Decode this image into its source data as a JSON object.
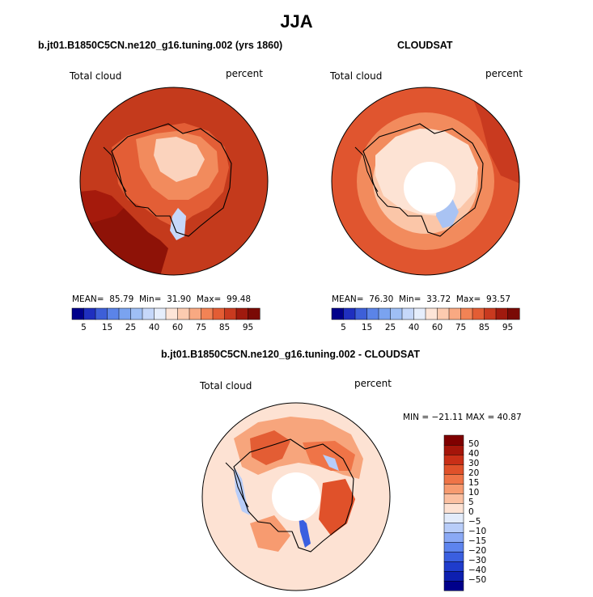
{
  "title": "JJA",
  "colors": {
    "ocean_high": "#c1361b",
    "land_mid": "#f08a5c",
    "land_light": "#fbd5c0",
    "coast": "#000000"
  },
  "panels": [
    {
      "name": "model",
      "title": "b.jt01.B1850C5CN.ne120_g16.tuning.002 (yrs 1860)",
      "left_label": "Total cloud",
      "right_label": "percent",
      "stats": {
        "mean_label": "MEAN=",
        "mean": "85.79",
        "min_label": "Min=",
        "min": "31.90",
        "max_label": "Max=",
        "max": "99.48"
      }
    },
    {
      "name": "cloudsat",
      "title": "CLOUDSAT",
      "left_label": "Total cloud",
      "right_label": "percent",
      "stats": {
        "mean_label": "MEAN=",
        "mean": "76.30",
        "min_label": "Min=",
        "min": "33.72",
        "max_label": "Max=",
        "max": "93.57"
      }
    },
    {
      "name": "difference",
      "title": "b.jt01.B1850C5CN.ne120_g16.tuning.002 - CLOUDSAT",
      "left_label": "Total cloud",
      "right_label": "percent",
      "minmax": "MIN = −21.11 MAX =  40.87"
    }
  ],
  "chart_data": [
    {
      "type": "heatmap",
      "title": "b.jt01.B1850C5CN.ne120_g16.tuning.002 (yrs 1860)",
      "variable": "Total cloud",
      "units": "percent",
      "projection": "south polar stereographic",
      "mean": 85.79,
      "min": 31.9,
      "max": 99.48,
      "colorbar": {
        "levels": [
          5,
          10,
          15,
          20,
          25,
          30,
          40,
          50,
          60,
          70,
          75,
          80,
          85,
          90,
          95
        ],
        "tick_labels": [
          "5",
          "15",
          "25",
          "40",
          "60",
          "75",
          "85",
          "95"
        ],
        "colors": [
          "#00008b",
          "#1f2fbf",
          "#3d5fd8",
          "#5b84e8",
          "#7aa3f0",
          "#9fbff5",
          "#c6d8fa",
          "#e6eefc",
          "#fde5d8",
          "#fccbb0",
          "#f9a982",
          "#f28355",
          "#e35d34",
          "#c93a1f",
          "#a01a0e",
          "#7a0a05"
        ]
      }
    },
    {
      "type": "heatmap",
      "title": "CLOUDSAT",
      "variable": "Total cloud",
      "units": "percent",
      "projection": "south polar stereographic",
      "mean": 76.3,
      "min": 33.72,
      "max": 93.57,
      "colorbar": {
        "levels": [
          5,
          10,
          15,
          20,
          25,
          30,
          40,
          50,
          60,
          70,
          75,
          80,
          85,
          90,
          95
        ],
        "tick_labels": [
          "5",
          "15",
          "25",
          "40",
          "60",
          "75",
          "85",
          "95"
        ],
        "colors": [
          "#00008b",
          "#1f2fbf",
          "#3d5fd8",
          "#5b84e8",
          "#7aa3f0",
          "#9fbff5",
          "#c6d8fa",
          "#e6eefc",
          "#fde5d8",
          "#fccbb0",
          "#f9a982",
          "#f28355",
          "#e35d34",
          "#c93a1f",
          "#a01a0e",
          "#7a0a05"
        ]
      }
    },
    {
      "type": "heatmap",
      "title": "b.jt01.B1850C5CN.ne120_g16.tuning.002 - CLOUDSAT",
      "variable": "Total cloud",
      "units": "percent",
      "projection": "south polar stereographic",
      "min": -21.11,
      "max": 40.87,
      "colorbar": {
        "levels": [
          -50,
          -40,
          -30,
          -20,
          -15,
          -10,
          -5,
          0,
          5,
          10,
          15,
          20,
          30,
          40,
          50
        ],
        "tick_labels": [
          "50",
          "40",
          "30",
          "20",
          "15",
          "10",
          "5",
          "0",
          "−5",
          "−10",
          "−15",
          "−20",
          "−30",
          "−40",
          "−50"
        ],
        "colors": [
          "#00008b",
          "#0d1fb0",
          "#1f3ccc",
          "#3a5fe0",
          "#5d84ee",
          "#8aa9f5",
          "#b8cdf9",
          "#e3ecfb",
          "#fde2d3",
          "#fbc0a1",
          "#f79b70",
          "#ef7447",
          "#e0512a",
          "#c92f17",
          "#a5150a",
          "#7f0000"
        ]
      }
    }
  ]
}
